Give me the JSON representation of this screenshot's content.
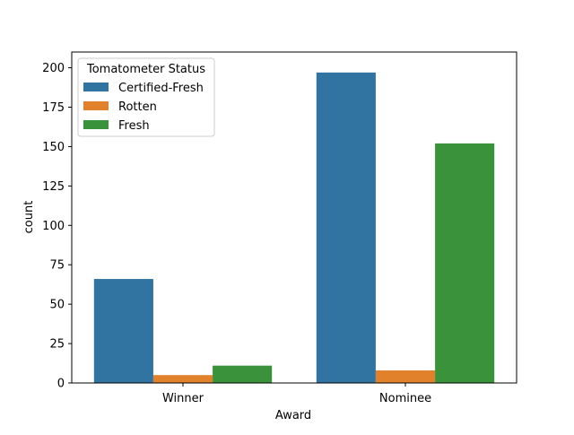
{
  "chart_data": {
    "type": "bar",
    "xlabel": "Award",
    "ylabel": "count",
    "categories": [
      "Winner",
      "Nominee"
    ],
    "ylim": [
      0,
      210
    ],
    "yticks": [
      0,
      25,
      50,
      75,
      100,
      125,
      150,
      175,
      200
    ],
    "legend": {
      "title": "Tomatometer Status",
      "placement": "top-left"
    },
    "series": [
      {
        "name": "Certified-Fresh",
        "color": "#3274a1",
        "values": [
          66,
          197
        ]
      },
      {
        "name": "Rotten",
        "color": "#e1812c",
        "values": [
          5,
          8
        ]
      },
      {
        "name": "Fresh",
        "color": "#3a923a",
        "values": [
          11,
          152
        ]
      }
    ]
  }
}
